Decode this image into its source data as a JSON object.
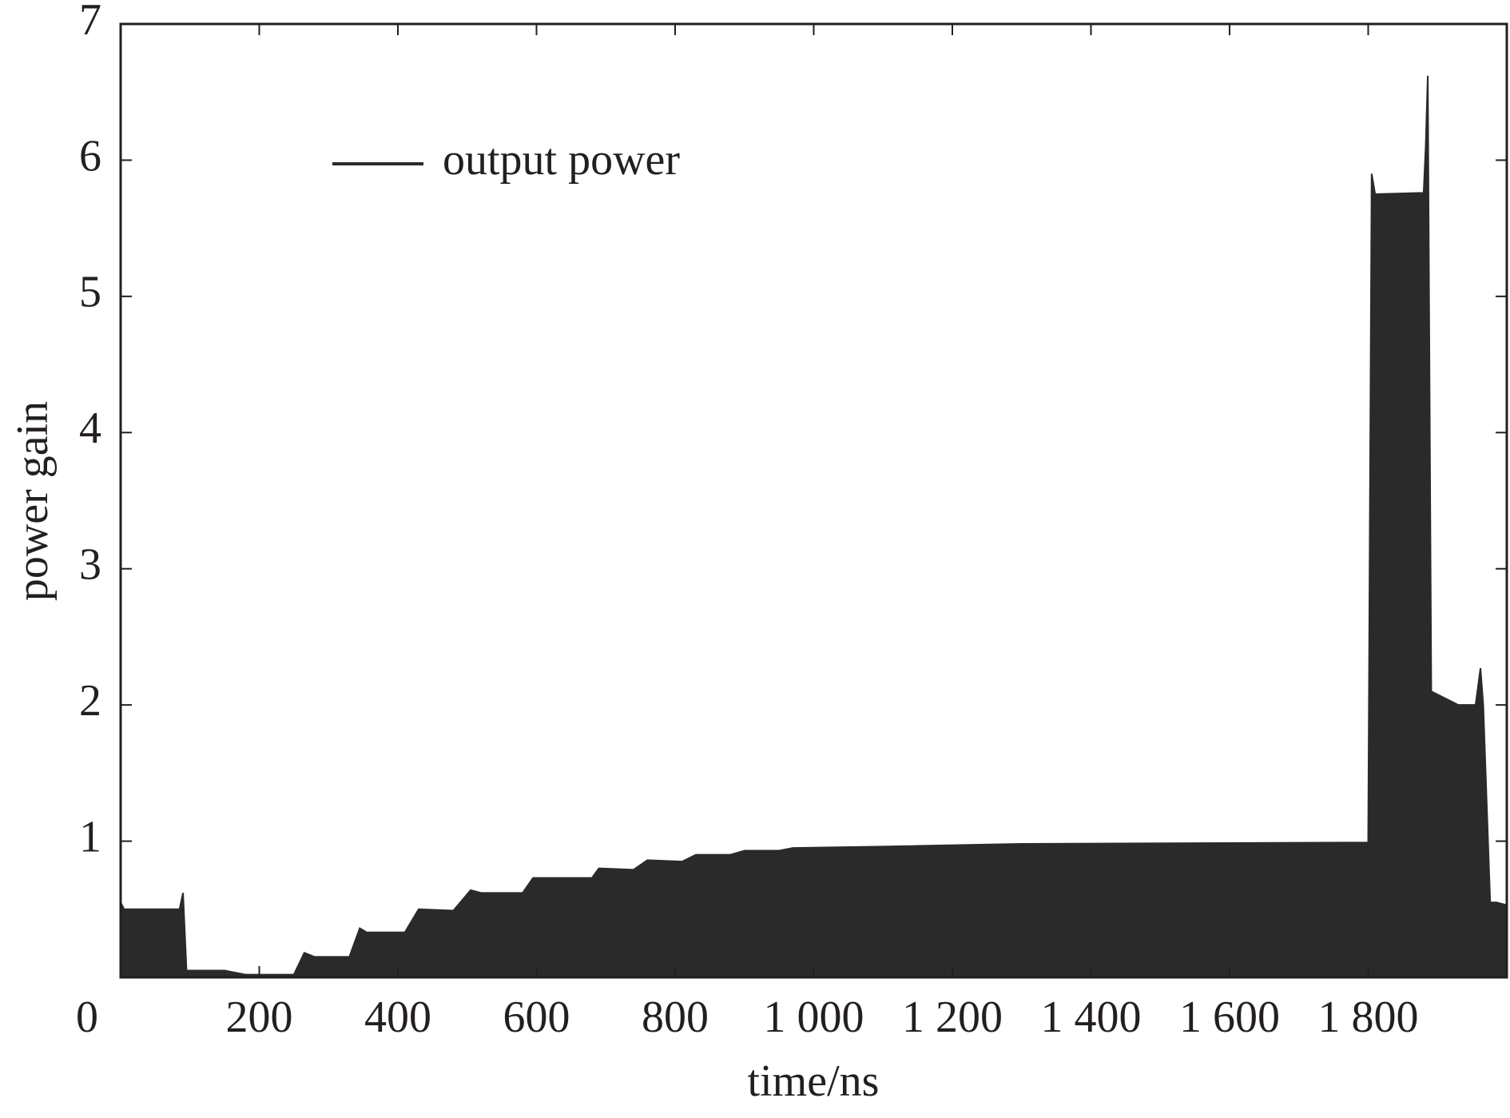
{
  "chart_data": {
    "type": "area",
    "xlabel": "time/ns",
    "ylabel": "power gain",
    "series": [
      {
        "name": "output power",
        "color": "#2b2a2b",
        "x": [
          0,
          5,
          85,
          90,
          95,
          150,
          180,
          250,
          265,
          280,
          330,
          345,
          355,
          410,
          430,
          480,
          505,
          520,
          580,
          595,
          680,
          690,
          740,
          760,
          810,
          830,
          880,
          900,
          950,
          970,
          1100,
          1300,
          1800,
          1805,
          1810,
          1880,
          1883,
          1886,
          1891,
          1930,
          1955,
          1962,
          1966,
          1976,
          1985,
          2000
        ],
        "values": [
          0.55,
          0.5,
          0.5,
          0.62,
          0.05,
          0.05,
          0.02,
          0.02,
          0.18,
          0.15,
          0.15,
          0.36,
          0.33,
          0.33,
          0.5,
          0.49,
          0.64,
          0.62,
          0.62,
          0.73,
          0.73,
          0.8,
          0.79,
          0.86,
          0.85,
          0.9,
          0.9,
          0.93,
          0.93,
          0.95,
          0.96,
          0.98,
          0.99,
          5.9,
          5.75,
          5.76,
          6.1,
          6.62,
          2.1,
          2.0,
          2.0,
          2.27,
          2.0,
          0.55,
          0.55,
          0.53
        ]
      }
    ],
    "xlim": [
      0,
      2000
    ],
    "xticks": [
      0,
      200,
      400,
      600,
      800,
      {
        "value": 1000,
        "label": "1 000"
      },
      {
        "value": 1200,
        "label": "1 200"
      },
      {
        "value": 1400,
        "label": "1 400"
      },
      {
        "value": 1600,
        "label": "1 600"
      },
      {
        "value": 1800,
        "label": "1 800"
      }
    ],
    "ylim": [
      0,
      7
    ],
    "yticks": [
      1,
      2,
      3,
      4,
      5,
      6,
      7
    ],
    "legend": "upper left"
  }
}
